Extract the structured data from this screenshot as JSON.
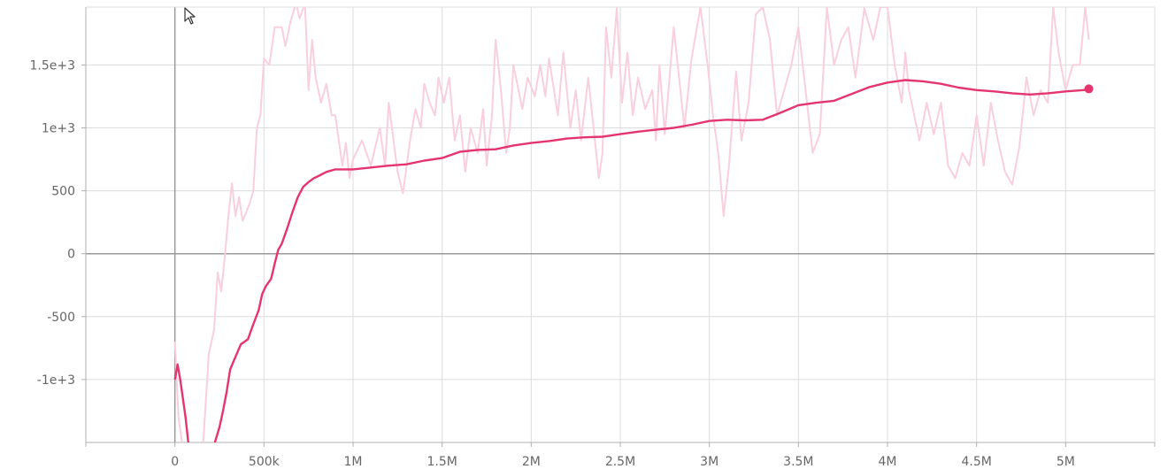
{
  "chart_data": {
    "type": "line",
    "title": "",
    "xlabel": "",
    "ylabel": "",
    "xlim": [
      -500000,
      5500000
    ],
    "ylim": [
      -1500,
      1960
    ],
    "x_ticks": [
      {
        "value": 0,
        "label": "0"
      },
      {
        "value": 500000,
        "label": "500k"
      },
      {
        "value": 1000000,
        "label": "1M"
      },
      {
        "value": 1500000,
        "label": "1.5M"
      },
      {
        "value": 2000000,
        "label": "2M"
      },
      {
        "value": 2500000,
        "label": "2.5M"
      },
      {
        "value": 3000000,
        "label": "3M"
      },
      {
        "value": 3500000,
        "label": "3.5M"
      },
      {
        "value": 4000000,
        "label": "4M"
      },
      {
        "value": 4500000,
        "label": "4.5M"
      },
      {
        "value": 5000000,
        "label": "5M"
      }
    ],
    "y_ticks": [
      {
        "value": 1500,
        "label": "1.5e+3"
      },
      {
        "value": 1000,
        "label": "1e+3"
      },
      {
        "value": 500,
        "label": "500"
      },
      {
        "value": 0,
        "label": "0"
      },
      {
        "value": -500,
        "label": "-500"
      },
      {
        "value": -1000,
        "label": "-1e+3"
      }
    ],
    "grid": true,
    "legend": "none",
    "series": [
      {
        "role": "raw",
        "color": "#f9cfdd",
        "points": [
          [
            0,
            -700
          ],
          [
            20000,
            -1300
          ],
          [
            60000,
            -1700
          ],
          [
            150000,
            -1700
          ],
          [
            190000,
            -800
          ],
          [
            220000,
            -600
          ],
          [
            240000,
            -150
          ],
          [
            260000,
            -300
          ],
          [
            280000,
            -30
          ],
          [
            300000,
            300
          ],
          [
            320000,
            560
          ],
          [
            340000,
            300
          ],
          [
            360000,
            450
          ],
          [
            380000,
            260
          ],
          [
            420000,
            400
          ],
          [
            440000,
            500
          ],
          [
            460000,
            1000
          ],
          [
            480000,
            1100
          ],
          [
            500000,
            1550
          ],
          [
            530000,
            1500
          ],
          [
            560000,
            1800
          ],
          [
            600000,
            1800
          ],
          [
            620000,
            1650
          ],
          [
            650000,
            1850
          ],
          [
            680000,
            1990
          ],
          [
            700000,
            1870
          ],
          [
            730000,
            1990
          ],
          [
            750000,
            1300
          ],
          [
            770000,
            1700
          ],
          [
            790000,
            1400
          ],
          [
            820000,
            1200
          ],
          [
            850000,
            1350
          ],
          [
            880000,
            1100
          ],
          [
            900000,
            1100
          ],
          [
            920000,
            900
          ],
          [
            940000,
            700
          ],
          [
            960000,
            880
          ],
          [
            980000,
            600
          ],
          [
            1000000,
            750
          ],
          [
            1050000,
            900
          ],
          [
            1100000,
            700
          ],
          [
            1150000,
            1000
          ],
          [
            1180000,
            700
          ],
          [
            1200000,
            1200
          ],
          [
            1250000,
            650
          ],
          [
            1280000,
            480
          ],
          [
            1320000,
            900
          ],
          [
            1350000,
            1150
          ],
          [
            1380000,
            1000
          ],
          [
            1400000,
            1350
          ],
          [
            1430000,
            1200
          ],
          [
            1460000,
            1100
          ],
          [
            1480000,
            1400
          ],
          [
            1510000,
            1200
          ],
          [
            1540000,
            1400
          ],
          [
            1570000,
            900
          ],
          [
            1600000,
            1100
          ],
          [
            1630000,
            650
          ],
          [
            1660000,
            1000
          ],
          [
            1700000,
            800
          ],
          [
            1730000,
            1150
          ],
          [
            1750000,
            700
          ],
          [
            1780000,
            1100
          ],
          [
            1800000,
            1700
          ],
          [
            1830000,
            1300
          ],
          [
            1860000,
            800
          ],
          [
            1880000,
            1000
          ],
          [
            1900000,
            1500
          ],
          [
            1950000,
            1150
          ],
          [
            1980000,
            1400
          ],
          [
            2020000,
            1250
          ],
          [
            2050000,
            1500
          ],
          [
            2080000,
            1250
          ],
          [
            2100000,
            1550
          ],
          [
            2150000,
            1100
          ],
          [
            2180000,
            1600
          ],
          [
            2220000,
            1000
          ],
          [
            2250000,
            1300
          ],
          [
            2280000,
            900
          ],
          [
            2320000,
            1400
          ],
          [
            2350000,
            1000
          ],
          [
            2380000,
            600
          ],
          [
            2400000,
            800
          ],
          [
            2420000,
            1800
          ],
          [
            2450000,
            1400
          ],
          [
            2480000,
            1950
          ],
          [
            2510000,
            1200
          ],
          [
            2540000,
            1600
          ],
          [
            2570000,
            1100
          ],
          [
            2600000,
            1400
          ],
          [
            2640000,
            1150
          ],
          [
            2680000,
            1300
          ],
          [
            2700000,
            900
          ],
          [
            2720000,
            1500
          ],
          [
            2750000,
            950
          ],
          [
            2800000,
            1800
          ],
          [
            2830000,
            1400
          ],
          [
            2860000,
            1000
          ],
          [
            2900000,
            1550
          ],
          [
            2950000,
            1960
          ],
          [
            2990000,
            1500
          ],
          [
            3020000,
            1100
          ],
          [
            3050000,
            800
          ],
          [
            3080000,
            300
          ],
          [
            3110000,
            700
          ],
          [
            3150000,
            1450
          ],
          [
            3180000,
            900
          ],
          [
            3220000,
            1200
          ],
          [
            3260000,
            1900
          ],
          [
            3300000,
            1960
          ],
          [
            3340000,
            1700
          ],
          [
            3380000,
            1100
          ],
          [
            3420000,
            1300
          ],
          [
            3460000,
            1500
          ],
          [
            3500000,
            1800
          ],
          [
            3540000,
            1300
          ],
          [
            3580000,
            800
          ],
          [
            3620000,
            950
          ],
          [
            3660000,
            1960
          ],
          [
            3700000,
            1500
          ],
          [
            3740000,
            1700
          ],
          [
            3780000,
            1800
          ],
          [
            3820000,
            1400
          ],
          [
            3870000,
            1950
          ],
          [
            3920000,
            1700
          ],
          [
            3960000,
            1960
          ],
          [
            4000000,
            1960
          ],
          [
            4040000,
            1500
          ],
          [
            4080000,
            1200
          ],
          [
            4100000,
            1600
          ],
          [
            4120000,
            1300
          ],
          [
            4150000,
            1100
          ],
          [
            4180000,
            900
          ],
          [
            4220000,
            1200
          ],
          [
            4260000,
            950
          ],
          [
            4300000,
            1200
          ],
          [
            4340000,
            700
          ],
          [
            4380000,
            600
          ],
          [
            4420000,
            800
          ],
          [
            4460000,
            700
          ],
          [
            4500000,
            1100
          ],
          [
            4540000,
            700
          ],
          [
            4580000,
            1200
          ],
          [
            4620000,
            900
          ],
          [
            4660000,
            650
          ],
          [
            4700000,
            550
          ],
          [
            4740000,
            850
          ],
          [
            4780000,
            1400
          ],
          [
            4820000,
            1100
          ],
          [
            4860000,
            1300
          ],
          [
            4900000,
            1200
          ],
          [
            4930000,
            1960
          ],
          [
            4960000,
            1600
          ],
          [
            5000000,
            1300
          ],
          [
            5040000,
            1500
          ],
          [
            5080000,
            1500
          ],
          [
            5110000,
            1960
          ],
          [
            5130000,
            1700
          ]
        ]
      },
      {
        "role": "smoothed",
        "color": "#e5356f",
        "points": [
          [
            0,
            -1000
          ],
          [
            15000,
            -880
          ],
          [
            30000,
            -1000
          ],
          [
            45000,
            -1150
          ],
          [
            60000,
            -1300
          ],
          [
            75000,
            -1500
          ],
          [
            85000,
            -1580
          ],
          [
            200000,
            -1580
          ],
          [
            220000,
            -1520
          ],
          [
            250000,
            -1380
          ],
          [
            270000,
            -1250
          ],
          [
            290000,
            -1100
          ],
          [
            310000,
            -920
          ],
          [
            340000,
            -820
          ],
          [
            370000,
            -720
          ],
          [
            410000,
            -680
          ],
          [
            440000,
            -560
          ],
          [
            470000,
            -450
          ],
          [
            490000,
            -320
          ],
          [
            510000,
            -260
          ],
          [
            540000,
            -200
          ],
          [
            560000,
            -80
          ],
          [
            580000,
            30
          ],
          [
            600000,
            80
          ],
          [
            630000,
            200
          ],
          [
            660000,
            330
          ],
          [
            690000,
            450
          ],
          [
            720000,
            530
          ],
          [
            750000,
            570
          ],
          [
            780000,
            600
          ],
          [
            810000,
            620
          ],
          [
            850000,
            650
          ],
          [
            900000,
            670
          ],
          [
            1000000,
            670
          ],
          [
            1100000,
            685
          ],
          [
            1200000,
            700
          ],
          [
            1300000,
            710
          ],
          [
            1400000,
            740
          ],
          [
            1500000,
            760
          ],
          [
            1600000,
            810
          ],
          [
            1700000,
            825
          ],
          [
            1800000,
            830
          ],
          [
            1900000,
            860
          ],
          [
            2000000,
            880
          ],
          [
            2100000,
            895
          ],
          [
            2200000,
            915
          ],
          [
            2300000,
            925
          ],
          [
            2400000,
            930
          ],
          [
            2500000,
            950
          ],
          [
            2600000,
            970
          ],
          [
            2700000,
            985
          ],
          [
            2800000,
            1000
          ],
          [
            2900000,
            1025
          ],
          [
            3000000,
            1055
          ],
          [
            3100000,
            1065
          ],
          [
            3200000,
            1060
          ],
          [
            3300000,
            1065
          ],
          [
            3400000,
            1120
          ],
          [
            3500000,
            1180
          ],
          [
            3600000,
            1200
          ],
          [
            3700000,
            1215
          ],
          [
            3800000,
            1270
          ],
          [
            3900000,
            1325
          ],
          [
            4000000,
            1360
          ],
          [
            4100000,
            1380
          ],
          [
            4200000,
            1370
          ],
          [
            4300000,
            1350
          ],
          [
            4400000,
            1320
          ],
          [
            4500000,
            1300
          ],
          [
            4600000,
            1290
          ],
          [
            4700000,
            1275
          ],
          [
            4800000,
            1265
          ],
          [
            4900000,
            1275
          ],
          [
            5000000,
            1290
          ],
          [
            5100000,
            1300
          ],
          [
            5130000,
            1310
          ]
        ]
      }
    ]
  },
  "colors": {
    "raw": "#f9cfdd",
    "smoothed": "#e5356f",
    "grid": "#dcdcdc",
    "axis": "#9a9a9a"
  },
  "icons": {
    "cursor": "mouse-pointer-icon"
  }
}
